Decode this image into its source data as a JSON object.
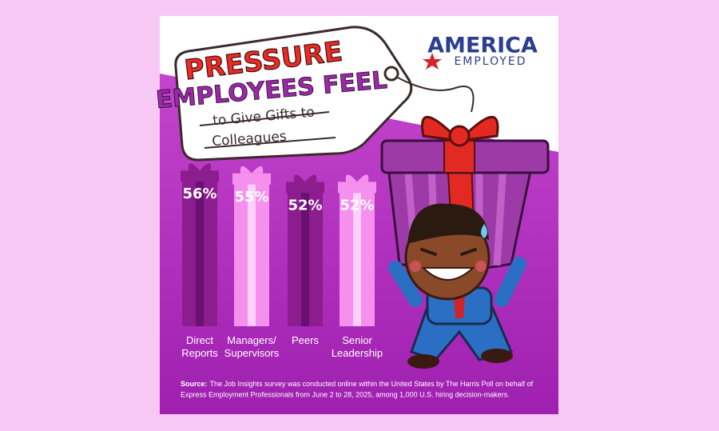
{
  "brand": {
    "line1": "AMERICA",
    "line2": "EMPLOYED"
  },
  "title": {
    "line1": "PRESSURE",
    "line2": "EMPLOYEES FEEL",
    "line3": "to Give Gifts to",
    "line4": "Colleagues"
  },
  "chart_data": {
    "type": "bar",
    "categories": [
      "Direct Reports",
      "Managers/ Supervisors",
      "Peers",
      "Senior Leadership"
    ],
    "values": [
      56,
      55,
      52,
      52
    ],
    "value_labels": [
      "56%",
      "55%",
      "52%",
      "52%"
    ],
    "colors": [
      "#8c1d8e",
      "#f690ef",
      "#8c1d8e",
      "#f690ef"
    ]
  },
  "source": {
    "label": "Source:",
    "text": "The Job Insights survey was conducted online within the United States by The Harris Poll on behalf of Express Employment Professionals from June 2 to 28, 2025, among 1,000 U.S. hiring decision-makers."
  }
}
